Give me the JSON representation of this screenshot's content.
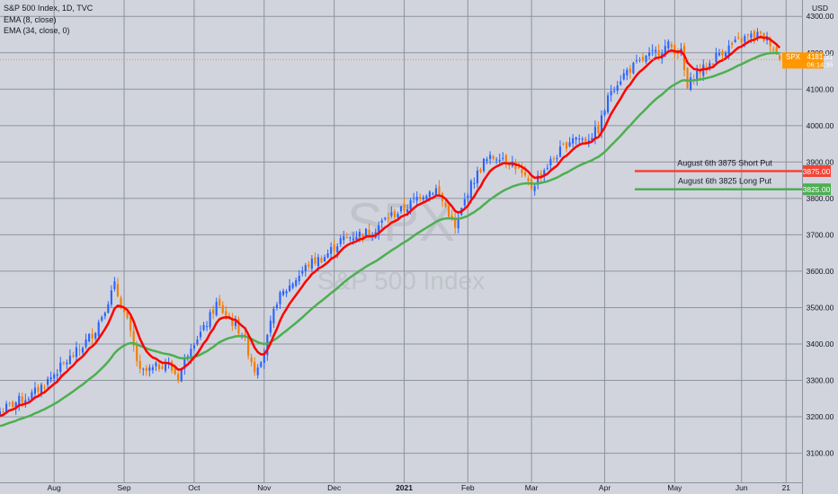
{
  "header": {
    "symbol_line": "S&P 500 Index, 1D, TVC",
    "indicator_1": "EMA (8, close)",
    "indicator_2": "EMA (34, close, 0)",
    "currency": "USD"
  },
  "watermark": {
    "ticker": "SPX",
    "name": "S&P 500 Index"
  },
  "colors": {
    "background": "#d1d4dc",
    "grid": "#8f939e",
    "candle_up": "#2962ff",
    "candle_down": "#f57c00",
    "ema_fast": "#ff0000",
    "ema_slow": "#4caf50",
    "short_put": "#f44336",
    "long_put": "#4caf50",
    "price_tag": "#ff9800"
  },
  "chart_data": {
    "type": "candlestick",
    "y_range": [
      3020,
      4345
    ],
    "y_ticks": [
      3100,
      3200,
      3300,
      3400,
      3500,
      3600,
      3700,
      3800,
      3900,
      4000,
      4100,
      4200,
      4300
    ],
    "y_tick_labels": [
      "3100.00",
      "3200.00",
      "3300.00",
      "3400.00",
      "3500.00",
      "3600.00",
      "3700.00",
      "3800.00",
      "3900.00",
      "4000.00",
      "4100.00",
      "4200.00",
      "4300.00"
    ],
    "x_labels": [
      "Aug",
      "Sep",
      "Oct",
      "Nov",
      "Dec",
      "2021",
      "Feb",
      "Mar",
      "Apr",
      "May",
      "Jun",
      "21"
    ],
    "x_label_bold": [
      false,
      false,
      false,
      false,
      false,
      true,
      false,
      false,
      false,
      false,
      false,
      false
    ],
    "x_label_days": [
      17,
      39,
      61,
      83,
      105,
      127,
      147,
      167,
      190,
      212,
      233,
      247
    ],
    "day_range": [
      0,
      252
    ],
    "closes_anchor_days": [
      0,
      5,
      10,
      15,
      20,
      25,
      30,
      33,
      36,
      40,
      44,
      48,
      52,
      56,
      60,
      64,
      68,
      72,
      76,
      80,
      83,
      87,
      92,
      97,
      102,
      107,
      112,
      117,
      122,
      127,
      132,
      137,
      141,
      143,
      147,
      152,
      157,
      162,
      165,
      167,
      170,
      175,
      180,
      184,
      188,
      192,
      197,
      202,
      206,
      210,
      214,
      216,
      218,
      222,
      226,
      230,
      234,
      238,
      242,
      245
    ],
    "closes_anchor_values": [
      3215,
      3240,
      3260,
      3300,
      3345,
      3385,
      3440,
      3500,
      3560,
      3460,
      3320,
      3330,
      3350,
      3310,
      3400,
      3440,
      3510,
      3470,
      3430,
      3330,
      3380,
      3520,
      3570,
      3620,
      3640,
      3685,
      3700,
      3710,
      3750,
      3770,
      3810,
      3825,
      3760,
      3715,
      3820,
      3900,
      3920,
      3890,
      3850,
      3830,
      3870,
      3920,
      3970,
      3960,
      3990,
      4100,
      4150,
      4180,
      4200,
      4220,
      4200,
      4100,
      4140,
      4160,
      4200,
      4220,
      4240,
      4250,
      4230,
      4181
    ],
    "ema_periods": [
      8,
      34
    ],
    "current_price": {
      "label": "SPX",
      "value": "4181.31",
      "countdown": "06:14:35",
      "price": 4181.31
    },
    "levels": [
      {
        "name": "short-put",
        "label": "August 6th 3875 Short Put",
        "price": 3875,
        "price_label": "3875.00"
      },
      {
        "name": "long-put",
        "label": "August 6th 3825 Long Put",
        "price": 3825,
        "price_label": "3825.00"
      }
    ]
  }
}
